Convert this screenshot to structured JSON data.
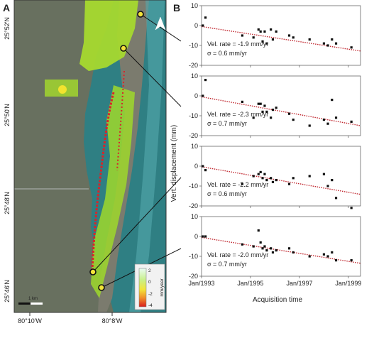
{
  "figure": {
    "panel_a_label": "A",
    "panel_b_label": "B"
  },
  "map": {
    "lat_labels": [
      "25°52'N",
      "25°50'N",
      "25°48'N",
      "25°46'N"
    ],
    "lon_labels": [
      "80°10'W",
      "80°8'W"
    ],
    "scale_bar_label": "1 km",
    "north_arrow": "north-arrow-icon",
    "legend": {
      "title": "mm/year",
      "ticks": [
        "2",
        "0",
        "-2",
        "-4"
      ],
      "colors": [
        "#e9fbf3",
        "#c9f08a",
        "#f3e43a",
        "#f08a2a",
        "#d81d1d"
      ]
    },
    "colors": {
      "water": "#2f7f83",
      "land": "#68705f",
      "stable_points": "#9fd82b",
      "subsiding_points": "#d8242a"
    }
  },
  "chart_data": [
    {
      "type": "scatter",
      "title": "",
      "annotation_rate": "Vel. rate = -1.9 mm/yr",
      "annotation_sigma": "σ = 0.6 mm/yr",
      "xlabel": "Acquisition time",
      "ylabel": "Vert. displacement (mm)",
      "xlim": [
        "1993-01-01",
        "1999-07-01"
      ],
      "ylim": [
        -20,
        10
      ],
      "yticks": [
        10,
        0,
        -10,
        -20
      ],
      "xticks": [
        "Jan/1993",
        "Jan/1995",
        "Jan/1997",
        "Jan/1999"
      ],
      "grid": false,
      "points": [
        {
          "x": "1993-01-20",
          "y": 0
        },
        {
          "x": "1993-03-01",
          "y": 4
        },
        {
          "x": "1994-09-01",
          "y": -5
        },
        {
          "x": "1995-02-15",
          "y": -6
        },
        {
          "x": "1995-05-01",
          "y": -2
        },
        {
          "x": "1995-06-01",
          "y": -3
        },
        {
          "x": "1995-07-01",
          "y": -8
        },
        {
          "x": "1995-08-01",
          "y": -3
        },
        {
          "x": "1995-09-01",
          "y": -9
        },
        {
          "x": "1995-11-01",
          "y": -2
        },
        {
          "x": "1995-12-01",
          "y": -7
        },
        {
          "x": "1996-01-20",
          "y": -3
        },
        {
          "x": "1996-08-01",
          "y": -5
        },
        {
          "x": "1996-10-01",
          "y": -6
        },
        {
          "x": "1997-06-01",
          "y": -7
        },
        {
          "x": "1998-01-01",
          "y": -9
        },
        {
          "x": "1998-03-01",
          "y": -10
        },
        {
          "x": "1998-05-01",
          "y": -7
        },
        {
          "x": "1998-07-01",
          "y": -9
        },
        {
          "x": "1999-02-15",
          "y": -11
        }
      ],
      "trend": {
        "x": [
          "1993-01-01",
          "1999-07-01"
        ],
        "y": [
          -0.5,
          -12.8
        ],
        "style": "dotted",
        "color": "#c0262e"
      }
    },
    {
      "type": "scatter",
      "title": "",
      "annotation_rate": "Vel. rate = -2.3 mm/yr",
      "annotation_sigma": "σ = 0.7 mm/yr",
      "xlabel": "Acquisition time",
      "ylabel": "Vert. displacement (mm)",
      "xlim": [
        "1993-01-01",
        "1999-07-01"
      ],
      "ylim": [
        -20,
        10
      ],
      "yticks": [
        10,
        0,
        -10,
        -20
      ],
      "xticks": [
        "Jan/1993",
        "Jan/1995",
        "Jan/1997",
        "Jan/1999"
      ],
      "grid": false,
      "points": [
        {
          "x": "1993-01-20",
          "y": 0
        },
        {
          "x": "1993-03-01",
          "y": 8
        },
        {
          "x": "1994-09-01",
          "y": -3
        },
        {
          "x": "1995-02-15",
          "y": -11
        },
        {
          "x": "1995-05-01",
          "y": -4
        },
        {
          "x": "1995-06-01",
          "y": -4
        },
        {
          "x": "1995-07-01",
          "y": -8
        },
        {
          "x": "1995-08-01",
          "y": -5
        },
        {
          "x": "1995-09-01",
          "y": -8
        },
        {
          "x": "1995-11-01",
          "y": -11
        },
        {
          "x": "1995-12-01",
          "y": -7
        },
        {
          "x": "1996-01-20",
          "y": -6
        },
        {
          "x": "1996-08-01",
          "y": -9
        },
        {
          "x": "1996-10-01",
          "y": -12
        },
        {
          "x": "1997-06-01",
          "y": -15
        },
        {
          "x": "1998-01-01",
          "y": -12
        },
        {
          "x": "1998-03-01",
          "y": -14
        },
        {
          "x": "1998-05-01",
          "y": -2
        },
        {
          "x": "1998-07-01",
          "y": -11
        },
        {
          "x": "1999-02-15",
          "y": -13
        }
      ],
      "trend": {
        "x": [
          "1993-01-01",
          "1999-07-01"
        ],
        "y": [
          -0.5,
          -15.0
        ],
        "style": "dotted",
        "color": "#c0262e"
      }
    },
    {
      "type": "scatter",
      "title": "",
      "annotation_rate": "Vel. rate = -2.2 mm/yr",
      "annotation_sigma": "σ = 0.6 mm/yr",
      "xlabel": "Acquisition time",
      "ylabel": "Vert. displacement (mm)",
      "xlim": [
        "1993-01-01",
        "1999-07-01"
      ],
      "ylim": [
        -20,
        10
      ],
      "yticks": [
        10,
        0,
        -10,
        -20
      ],
      "xticks": [
        "Jan/1993",
        "Jan/1995",
        "Jan/1997",
        "Jan/1999"
      ],
      "grid": false,
      "points": [
        {
          "x": "1993-01-20",
          "y": 0
        },
        {
          "x": "1993-03-01",
          "y": -2
        },
        {
          "x": "1994-09-01",
          "y": -9
        },
        {
          "x": "1995-02-15",
          "y": -5
        },
        {
          "x": "1995-05-01",
          "y": -4
        },
        {
          "x": "1995-06-01",
          "y": -3
        },
        {
          "x": "1995-07-01",
          "y": -6
        },
        {
          "x": "1995-08-01",
          "y": -4
        },
        {
          "x": "1995-09-01",
          "y": -7
        },
        {
          "x": "1995-11-01",
          "y": -6
        },
        {
          "x": "1995-12-01",
          "y": -8
        },
        {
          "x": "1996-01-20",
          "y": -7
        },
        {
          "x": "1996-08-01",
          "y": -9
        },
        {
          "x": "1996-10-01",
          "y": -6
        },
        {
          "x": "1997-06-01",
          "y": -5
        },
        {
          "x": "1998-01-01",
          "y": -4
        },
        {
          "x": "1998-03-01",
          "y": -10
        },
        {
          "x": "1998-05-01",
          "y": -7
        },
        {
          "x": "1998-07-01",
          "y": -16
        },
        {
          "x": "1999-02-15",
          "y": -21
        }
      ],
      "trend": {
        "x": [
          "1993-01-01",
          "1999-07-01"
        ],
        "y": [
          -0.3,
          -14.2
        ],
        "style": "dotted",
        "color": "#c0262e"
      }
    },
    {
      "type": "scatter",
      "title": "",
      "annotation_rate": "Vel. rate = -2.0 mm/yr",
      "annotation_sigma": "σ = 0.7 mm/yr",
      "xlabel": "Acquisition time",
      "ylabel": "Vert. displacement (mm)",
      "xlim": [
        "1993-01-01",
        "1999-07-01"
      ],
      "ylim": [
        -20,
        10
      ],
      "yticks": [
        10,
        0,
        -10,
        -20
      ],
      "xticks": [
        "Jan/1993",
        "Jan/1995",
        "Jan/1997",
        "Jan/1999"
      ],
      "grid": false,
      "points": [
        {
          "x": "1993-01-20",
          "y": 0
        },
        {
          "x": "1993-03-01",
          "y": 0
        },
        {
          "x": "1994-09-01",
          "y": -4
        },
        {
          "x": "1995-02-15",
          "y": -5
        },
        {
          "x": "1995-05-01",
          "y": 3
        },
        {
          "x": "1995-06-01",
          "y": -3
        },
        {
          "x": "1995-07-01",
          "y": -6
        },
        {
          "x": "1995-08-01",
          "y": -5
        },
        {
          "x": "1995-09-01",
          "y": -7
        },
        {
          "x": "1995-11-01",
          "y": -6
        },
        {
          "x": "1995-12-01",
          "y": -8
        },
        {
          "x": "1996-01-20",
          "y": -7
        },
        {
          "x": "1996-08-01",
          "y": -6
        },
        {
          "x": "1996-10-01",
          "y": -8
        },
        {
          "x": "1997-06-01",
          "y": -10
        },
        {
          "x": "1998-01-01",
          "y": -9
        },
        {
          "x": "1998-03-01",
          "y": -10
        },
        {
          "x": "1998-05-01",
          "y": -8
        },
        {
          "x": "1998-07-01",
          "y": -12
        },
        {
          "x": "1999-02-15",
          "y": -12
        }
      ],
      "trend": {
        "x": [
          "1993-01-01",
          "1999-07-01"
        ],
        "y": [
          -0.5,
          -13.5
        ],
        "style": "dotted",
        "color": "#c0262e"
      }
    }
  ]
}
